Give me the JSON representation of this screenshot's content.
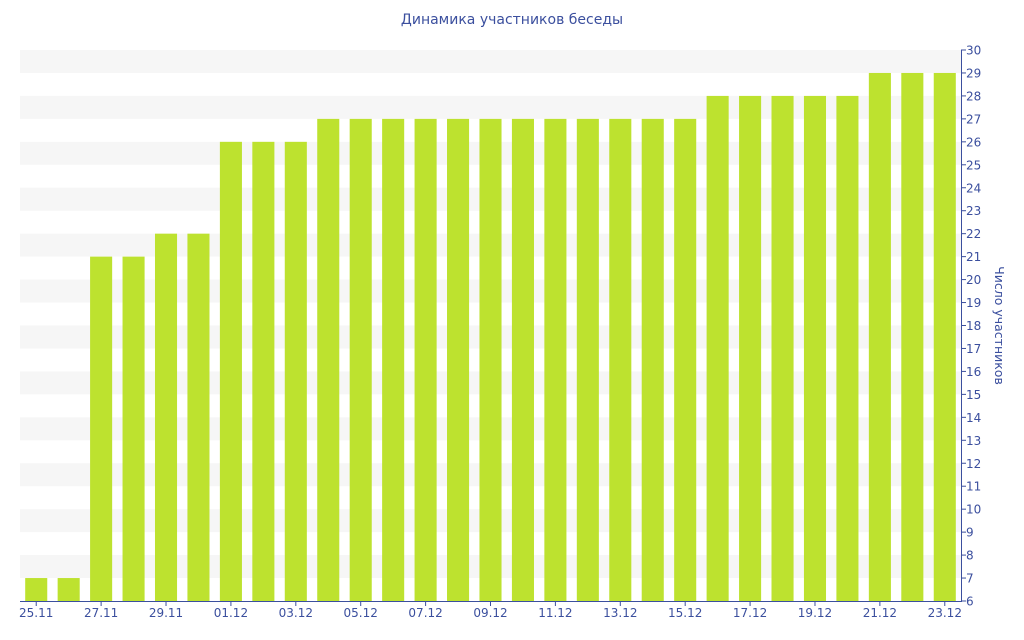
{
  "chart_data": {
    "type": "bar",
    "title": "Динамика участников беседы",
    "ylabel": "Число участников",
    "xlabel": "",
    "ylim": [
      6,
      30
    ],
    "y_ticks": [
      6,
      7,
      8,
      9,
      10,
      11,
      12,
      13,
      14,
      15,
      16,
      17,
      18,
      19,
      20,
      21,
      22,
      23,
      24,
      25,
      26,
      27,
      28,
      29,
      30
    ],
    "y_axis_side": "right",
    "grid": "alternating horizontal bands",
    "bar_color": "#bde22f",
    "band_color": "#f6f6f6",
    "text_color": "#3b4f9e",
    "categories": [
      "25.11",
      "26.11",
      "27.11",
      "28.11",
      "29.11",
      "30.11",
      "01.12",
      "02.12",
      "03.12",
      "04.12",
      "05.12",
      "06.12",
      "07.12",
      "08.12",
      "09.12",
      "10.12",
      "11.12",
      "12.12",
      "13.12",
      "14.12",
      "15.12",
      "16.12",
      "17.12",
      "18.12",
      "19.12",
      "20.12",
      "21.12",
      "22.12",
      "23.12"
    ],
    "x_tick_labels": [
      "25.11",
      "27.11",
      "29.11",
      "01.12",
      "03.12",
      "05.12",
      "07.12",
      "09.12",
      "11.12",
      "13.12",
      "15.12",
      "17.12",
      "19.12",
      "21.12",
      "23.12"
    ],
    "values": [
      7,
      7,
      21,
      21,
      22,
      22,
      26,
      26,
      26,
      27,
      27,
      27,
      27,
      27,
      27,
      27,
      27,
      27,
      27,
      27,
      27,
      28,
      28,
      28,
      28,
      28,
      29,
      29,
      29
    ]
  }
}
